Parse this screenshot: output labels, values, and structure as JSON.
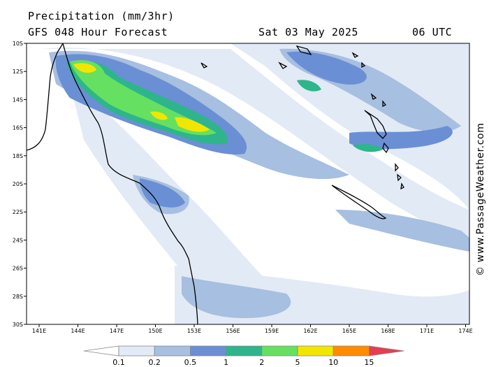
{
  "header": {
    "title": "Precipitation (mm/3hr)",
    "subtitle": "GFS 048 Hour Forecast",
    "date": "Sat 03 May 2025",
    "time": "06 UTC"
  },
  "credit": "© www.PassageWeather.com",
  "axes": {
    "lat_labels": [
      "10S",
      "12S",
      "14S",
      "16S",
      "18S",
      "20S",
      "22S",
      "24S",
      "26S",
      "28S",
      "30S"
    ],
    "lon_labels": [
      "141E",
      "144E",
      "147E",
      "150E",
      "153E",
      "156E",
      "159E",
      "162E",
      "165E",
      "168E",
      "171E",
      "174E"
    ]
  },
  "legend": {
    "labels": [
      "0.1",
      "0.2",
      "0.5",
      "1",
      "2",
      "5",
      "10",
      "15"
    ],
    "colors": [
      "#ffffff",
      "#e2eaf5",
      "#a7bfe0",
      "#6a8fd4",
      "#2eb58c",
      "#66e060",
      "#f2e600",
      "#ff8c00",
      "#e83c50"
    ]
  },
  "precip_colors": {
    "light": "#e2eaf5",
    "lightblue": "#a7bfe0",
    "blue": "#6a8fd4",
    "teal": "#2eb58c",
    "green": "#66e060",
    "yellow": "#f2e600"
  }
}
